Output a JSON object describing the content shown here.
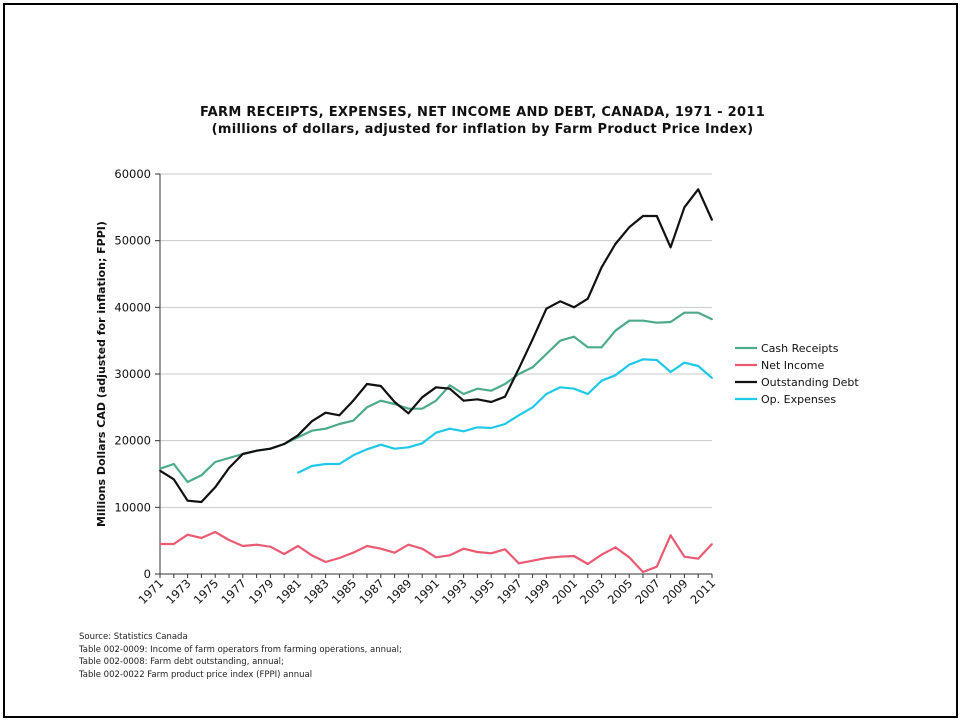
{
  "chart_data": {
    "type": "line",
    "title": "FARM RECEIPTS, EXPENSES, NET INCOME AND DEBT, CANADA, 1971 - 2011",
    "subtitle": "(millions of dollars, adjusted for inflation by Farm Product Price Index)",
    "xlabel": "",
    "ylabel": "Millions Dollars CAD (adjusted for inflation; FPPI)",
    "ylim": [
      0,
      60000
    ],
    "yticks": [
      "0",
      "10000",
      "20000",
      "30000",
      "40000",
      "50000",
      "60000"
    ],
    "xlim": [
      1971,
      2011
    ],
    "xtick_labels": [
      "1971",
      "1973",
      "1975",
      "1977",
      "1979",
      "1981",
      "1983",
      "1985",
      "1987",
      "1989",
      "1991",
      "1993",
      "1995",
      "1997",
      "1999",
      "2001",
      "2003",
      "2005",
      "2007",
      "2009",
      "2011"
    ],
    "grid": "horizontal",
    "legend_position": "right",
    "x": [
      1971,
      1972,
      1973,
      1974,
      1975,
      1976,
      1977,
      1978,
      1979,
      1980,
      1981,
      1982,
      1983,
      1984,
      1985,
      1986,
      1987,
      1988,
      1989,
      1990,
      1991,
      1992,
      1993,
      1994,
      1995,
      1996,
      1997,
      1998,
      1999,
      2000,
      2001,
      2002,
      2003,
      2004,
      2005,
      2006,
      2007,
      2008,
      2009,
      2010,
      2011
    ],
    "series": [
      {
        "name": "Cash Receipts",
        "color": "#4daa8a",
        "values": [
          15800,
          16500,
          13800,
          14800,
          16800,
          17400,
          18000,
          18500,
          18800,
          19500,
          20500,
          21500,
          21800,
          22500,
          23000,
          25000,
          26000,
          25500,
          24800,
          24800,
          26000,
          28300,
          27000,
          27800,
          27500,
          28500,
          30000,
          31000,
          33000,
          35000,
          35600,
          34000,
          34000,
          36500,
          38000,
          38000,
          37700,
          37800,
          39200,
          39200,
          38200
        ]
      },
      {
        "name": "Net Income",
        "color": "#ea5a72",
        "values": [
          4500,
          4500,
          5900,
          5400,
          6300,
          5100,
          4200,
          4400,
          4100,
          3000,
          4200,
          2800,
          1800,
          2400,
          3200,
          4200,
          3800,
          3200,
          4400,
          3800,
          2500,
          2800,
          3800,
          3300,
          3100,
          3700,
          1600,
          2000,
          2400,
          2600,
          2700,
          1500,
          2900,
          4000,
          2500,
          300,
          1100,
          5800,
          2600,
          2300,
          4500
        ]
      },
      {
        "name": "Outstanding Debt",
        "color": "#111111",
        "values": [
          15500,
          14200,
          11000,
          10800,
          13000,
          15900,
          18000,
          18500,
          18800,
          19500,
          20800,
          22900,
          24200,
          23800,
          26000,
          28500,
          28200,
          25800,
          24100,
          26500,
          28000,
          27800,
          26000,
          26200,
          25800,
          26600,
          30800,
          35200,
          39800,
          40900,
          40000,
          41300,
          46000,
          49500,
          52000,
          53700,
          53700,
          49000,
          55000,
          57700,
          53100
        ]
      },
      {
        "name": "Op. Expenses",
        "color": "#1ec9e8",
        "values": [
          null,
          null,
          null,
          null,
          null,
          null,
          null,
          null,
          null,
          null,
          15200,
          16200,
          16500,
          16500,
          17800,
          18700,
          19400,
          18800,
          19000,
          19600,
          21200,
          21800,
          21400,
          22000,
          21900,
          22500,
          23800,
          25000,
          27000,
          28000,
          27800,
          27000,
          29000,
          29800,
          31400,
          32200,
          32100,
          30300,
          31700,
          31200,
          29400
        ]
      }
    ]
  },
  "source": {
    "line1": "Source:  Statistics Canada",
    "line2": "Table 002-0009:  Income of farm operators from farming operations, annual;",
    "line3": "Table 002-0008:  Farm debt outstanding, annual;",
    "line4": "Table 002-0022 Farm product price index (FPPI) annual"
  }
}
